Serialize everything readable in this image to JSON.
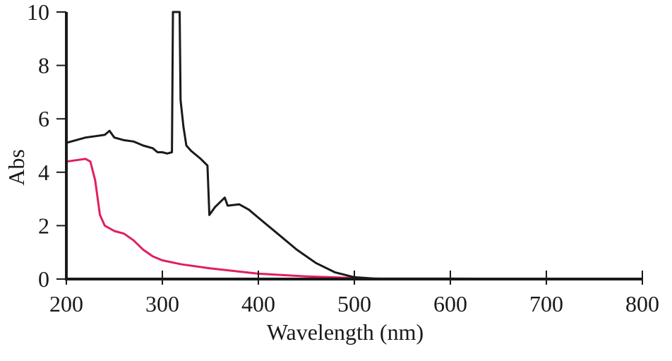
{
  "chart_data": {
    "type": "line",
    "title": "",
    "xlabel": "Wavelength (nm)",
    "ylabel": "Abs",
    "xlim": [
      200,
      800
    ],
    "ylim": [
      0,
      10
    ],
    "xticks": [
      200,
      300,
      400,
      500,
      600,
      700,
      800
    ],
    "yticks": [
      0,
      2,
      4,
      6,
      8,
      10
    ],
    "grid": false,
    "legend": null,
    "series": [
      {
        "name": "black spectrum",
        "color": "#1a1a1a",
        "x": [
          200,
          210,
          220,
          230,
          240,
          245,
          250,
          260,
          270,
          280,
          290,
          295,
          300,
          305,
          310,
          311,
          318,
          319,
          322,
          325,
          330,
          340,
          347,
          349,
          355,
          365,
          368,
          380,
          390,
          400,
          420,
          440,
          460,
          480,
          500,
          520,
          800
        ],
        "y": [
          5.1,
          5.2,
          5.3,
          5.35,
          5.4,
          5.55,
          5.3,
          5.2,
          5.15,
          5.0,
          4.9,
          4.75,
          4.75,
          4.7,
          4.75,
          10,
          10,
          6.7,
          5.7,
          5.0,
          4.8,
          4.5,
          4.25,
          2.4,
          2.7,
          3.05,
          2.75,
          2.8,
          2.6,
          2.3,
          1.7,
          1.1,
          0.6,
          0.25,
          0.07,
          0.02,
          0.0
        ]
      },
      {
        "name": "red spectrum",
        "color": "#e0205a",
        "x": [
          200,
          210,
          220,
          225,
          230,
          235,
          240,
          250,
          260,
          270,
          280,
          290,
          300,
          320,
          350,
          400,
          450,
          500,
          530,
          800
        ],
        "y": [
          4.4,
          4.45,
          4.5,
          4.4,
          3.7,
          2.4,
          2.0,
          1.8,
          1.7,
          1.45,
          1.1,
          0.85,
          0.7,
          0.55,
          0.4,
          0.2,
          0.1,
          0.04,
          0.01,
          0.0
        ]
      }
    ]
  },
  "labels": {
    "xlabel": "Wavelength (nm)",
    "ylabel": "Abs",
    "xticks": [
      "200",
      "300",
      "400",
      "500",
      "600",
      "700",
      "800"
    ],
    "yticks": [
      "0",
      "2",
      "4",
      "6",
      "8",
      "10"
    ]
  }
}
